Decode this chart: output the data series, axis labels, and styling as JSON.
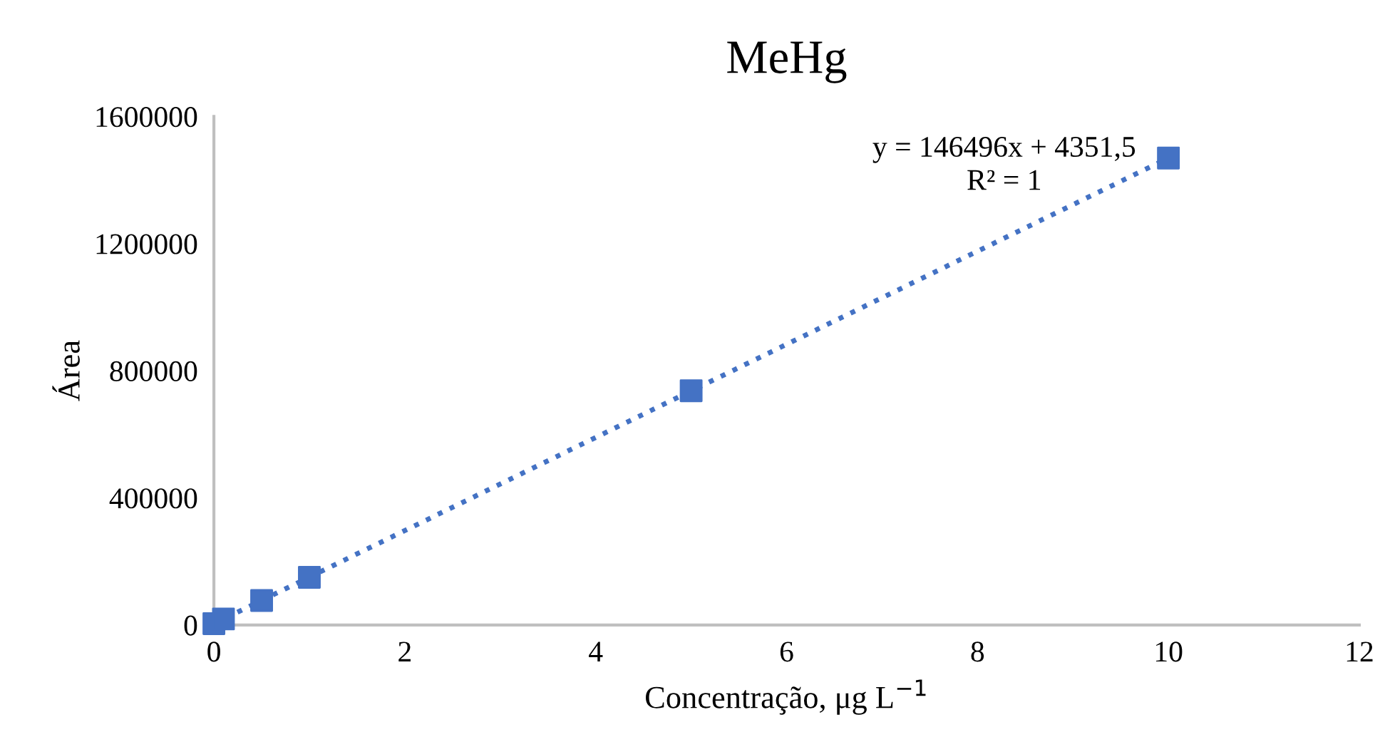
{
  "chart_data": {
    "type": "scatter",
    "title": "MeHg",
    "xlabel": "Concentração, μg L$^{−1}$",
    "ylabel": "Área",
    "series": [
      {
        "color": "#4472c4",
        "marker": "square",
        "x": [
          0,
          0.1,
          0.5,
          1,
          5,
          10
        ],
        "values": [
          4000,
          19000,
          77000,
          150000,
          737000,
          1469000
        ]
      },
      {
        "type": "line",
        "color": "#4472c4",
        "line_style": "dotted",
        "marker": "none",
        "x": [
          0,
          10
        ],
        "values": [
          4000,
          1469000
        ]
      }
    ],
    "annotations": [
      "y = 146496x + 4351,5",
      "R² = 1"
    ],
    "xlim": [
      0,
      12
    ],
    "xticks": [
      0,
      2,
      4,
      6,
      8,
      10,
      12
    ],
    "ylim": [
      0,
      1600000
    ],
    "yticks": [
      0,
      400000,
      800000,
      1200000,
      1600000
    ],
    "grid": false,
    "legend": false
  }
}
